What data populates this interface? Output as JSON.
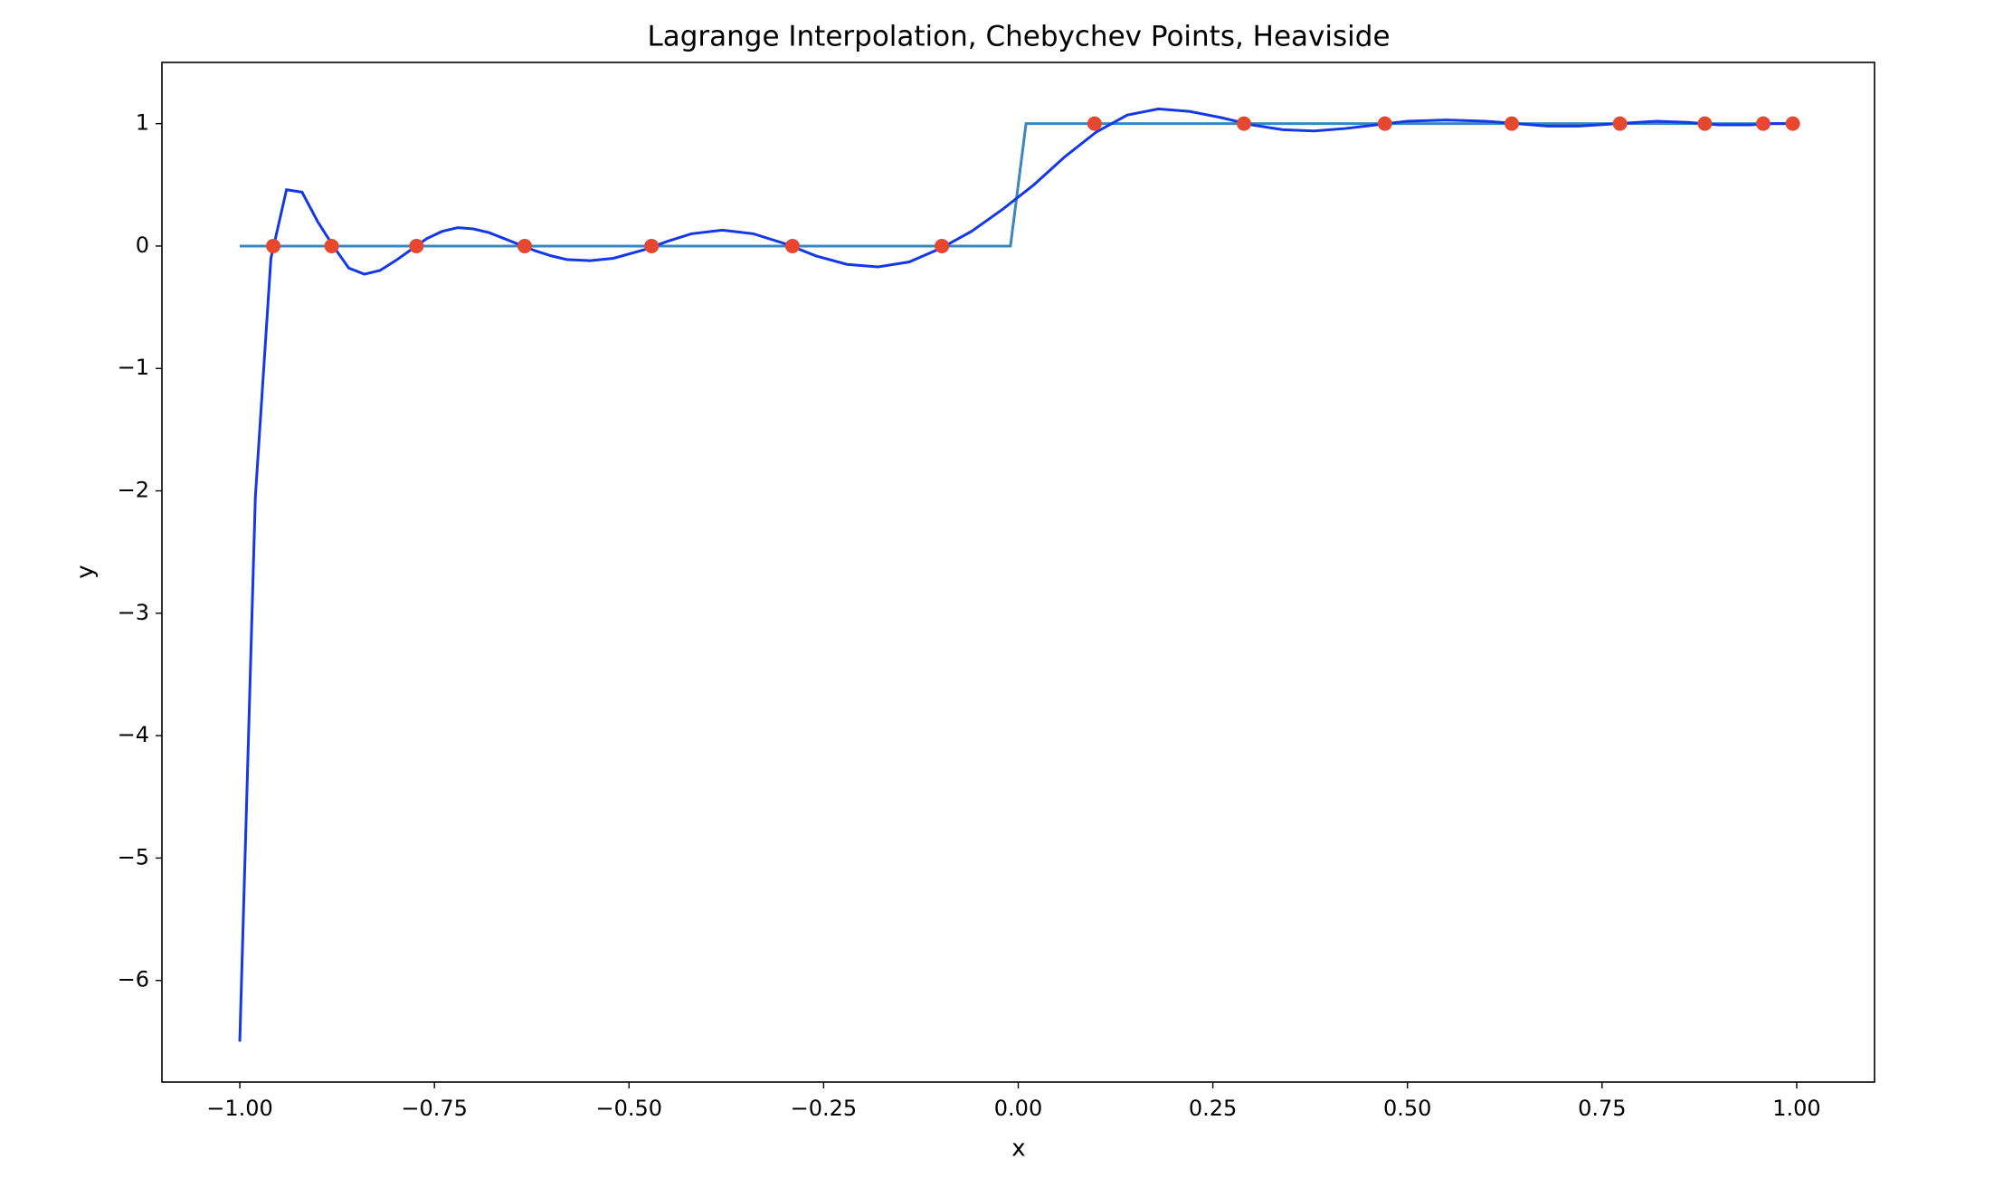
{
  "chart_data": {
    "type": "line",
    "title": "Lagrange Interpolation, Chebychev Points, Heaviside",
    "xlabel": "x",
    "ylabel": "y",
    "xlim": [
      -1.1,
      1.1
    ],
    "ylim": [
      -6.83,
      1.5
    ],
    "xticks": [
      {
        "value": -1,
        "label": "−1.00"
      },
      {
        "value": -0.75,
        "label": "−0.75"
      },
      {
        "value": -0.5,
        "label": "−0.50"
      },
      {
        "value": -0.25,
        "label": "−0.25"
      },
      {
        "value": 0,
        "label": "0.00"
      },
      0.25,
      {
        "value": 0.5,
        "label": "0.50"
      },
      0.75,
      {
        "value": 1,
        "label": "1.00"
      }
    ],
    "yticks": [
      {
        "value": -6,
        "label": "−6"
      },
      {
        "value": -5,
        "label": "−5"
      },
      {
        "value": -4,
        "label": "−4"
      },
      {
        "value": -3,
        "label": "−3"
      },
      {
        "value": -2,
        "label": "−2"
      },
      {
        "value": -1,
        "label": "−1"
      },
      0,
      1
    ],
    "series": [
      {
        "style": "line",
        "color": "#3a87c0",
        "x": [
          -1,
          -0.01,
          0.01,
          1
        ],
        "values": [
          0,
          0,
          1,
          1
        ]
      },
      {
        "style": "line",
        "color": "#1538e6",
        "x": [
          -1.0,
          -0.98,
          -0.96,
          -0.94,
          -0.92,
          -0.9,
          -0.88,
          -0.86,
          -0.84,
          -0.82,
          -0.8,
          -0.78,
          -0.76,
          -0.74,
          -0.72,
          -0.7,
          -0.68,
          -0.66,
          -0.64,
          -0.62,
          -0.6,
          -0.58,
          -0.55,
          -0.52,
          -0.48,
          -0.45,
          -0.42,
          -0.38,
          -0.34,
          -0.3,
          -0.26,
          -0.22,
          -0.18,
          -0.14,
          -0.1,
          -0.06,
          -0.02,
          0.02,
          0.06,
          0.1,
          0.14,
          0.18,
          0.22,
          0.26,
          0.3,
          0.34,
          0.38,
          0.42,
          0.46,
          0.5,
          0.55,
          0.6,
          0.64,
          0.68,
          0.72,
          0.77,
          0.82,
          0.86,
          0.9,
          0.94,
          0.97,
          1.0
        ],
        "values": [
          -6.5,
          -2.05,
          -0.1,
          0.46,
          0.44,
          0.2,
          0.0,
          -0.18,
          -0.23,
          -0.2,
          -0.12,
          -0.03,
          0.06,
          0.12,
          0.15,
          0.14,
          0.11,
          0.06,
          0.01,
          -0.04,
          -0.08,
          -0.11,
          -0.12,
          -0.1,
          -0.03,
          0.04,
          0.1,
          0.13,
          0.1,
          0.02,
          -0.08,
          -0.15,
          -0.17,
          -0.13,
          -0.02,
          0.12,
          0.3,
          0.5,
          0.73,
          0.93,
          1.07,
          1.12,
          1.1,
          1.05,
          0.99,
          0.95,
          0.94,
          0.96,
          0.99,
          1.02,
          1.03,
          1.02,
          1.0,
          0.98,
          0.98,
          1.0,
          1.02,
          1.01,
          0.99,
          0.99,
          1.0,
          1.0
        ]
      },
      {
        "style": "points",
        "color": "#e6472e",
        "x": [
          -0.957,
          -0.882,
          -0.773,
          -0.634,
          -0.471,
          -0.29,
          -0.098,
          0.098,
          0.29,
          0.471,
          0.634,
          0.773,
          0.882,
          0.957,
          0.995
        ],
        "values": [
          0,
          0,
          0,
          0,
          0,
          0,
          0,
          1,
          1,
          1,
          1,
          1,
          1,
          1,
          1
        ]
      }
    ]
  }
}
